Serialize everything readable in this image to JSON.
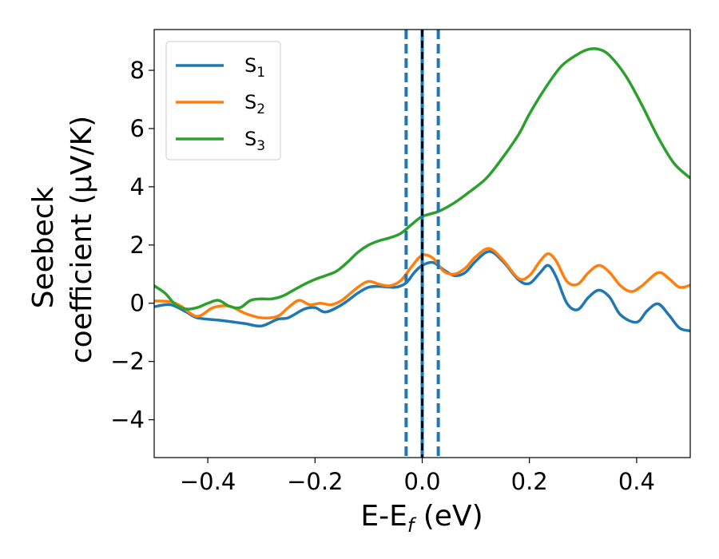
{
  "chart_data": {
    "type": "line",
    "xlabel_main": "E-E",
    "xlabel_sub": "f",
    "xlabel_unit": " (eV)",
    "ylabel_line1": "Seebeck",
    "ylabel_line2": "coefficient  (μV/K)",
    "xlim": [
      -0.5,
      0.5
    ],
    "ylim": [
      -5.3,
      9.4
    ],
    "xticks": [
      -0.4,
      -0.2,
      0.0,
      0.2,
      0.4
    ],
    "xtick_labels": [
      "−0.4",
      "−0.2",
      "0.0",
      "0.2",
      "0.4"
    ],
    "yticks": [
      -4,
      -2,
      0,
      2,
      4,
      6,
      8
    ],
    "ytick_labels": [
      "−4",
      "−2",
      "0",
      "2",
      "4",
      "6",
      "8"
    ],
    "grid": false,
    "legend_position": "top-left",
    "vlines": [
      {
        "x": -0.03,
        "style": "dashed",
        "color": "#1f77b4"
      },
      {
        "x": 0.0,
        "style": "solid",
        "color": "#1f77b4"
      },
      {
        "x": 0.0,
        "style": "dashed",
        "color": "#000000"
      },
      {
        "x": 0.03,
        "style": "dashed",
        "color": "#1f77b4"
      }
    ],
    "series": [
      {
        "name": "S",
        "sub": "1",
        "color": "#1f77b4",
        "points": [
          [
            -0.5,
            -0.12
          ],
          [
            -0.47,
            -0.05
          ],
          [
            -0.44,
            -0.3
          ],
          [
            -0.42,
            -0.5
          ],
          [
            -0.38,
            -0.58
          ],
          [
            -0.35,
            -0.65
          ],
          [
            -0.33,
            -0.7
          ],
          [
            -0.3,
            -0.78
          ],
          [
            -0.27,
            -0.55
          ],
          [
            -0.25,
            -0.5
          ],
          [
            -0.22,
            -0.2
          ],
          [
            -0.2,
            -0.15
          ],
          [
            -0.18,
            -0.3
          ],
          [
            -0.15,
            -0.05
          ],
          [
            -0.12,
            0.35
          ],
          [
            -0.1,
            0.55
          ],
          [
            -0.08,
            0.58
          ],
          [
            -0.05,
            0.55
          ],
          [
            -0.03,
            0.7
          ],
          [
            -0.015,
            1.05
          ],
          [
            0.0,
            1.3
          ],
          [
            0.02,
            1.4
          ],
          [
            0.04,
            1.15
          ],
          [
            0.06,
            0.95
          ],
          [
            0.08,
            1.05
          ],
          [
            0.1,
            1.45
          ],
          [
            0.125,
            1.78
          ],
          [
            0.15,
            1.45
          ],
          [
            0.18,
            0.8
          ],
          [
            0.2,
            0.68
          ],
          [
            0.22,
            1.05
          ],
          [
            0.235,
            1.3
          ],
          [
            0.25,
            0.9
          ],
          [
            0.27,
            0.0
          ],
          [
            0.29,
            -0.22
          ],
          [
            0.31,
            0.2
          ],
          [
            0.33,
            0.45
          ],
          [
            0.35,
            0.2
          ],
          [
            0.37,
            -0.4
          ],
          [
            0.4,
            -0.65
          ],
          [
            0.42,
            -0.25
          ],
          [
            0.44,
            -0.02
          ],
          [
            0.46,
            -0.4
          ],
          [
            0.48,
            -0.85
          ],
          [
            0.5,
            -0.95
          ]
        ]
      },
      {
        "name": "S",
        "sub": "2",
        "color": "#ff7f0e",
        "points": [
          [
            -0.5,
            0.08
          ],
          [
            -0.47,
            0.05
          ],
          [
            -0.45,
            -0.1
          ],
          [
            -0.42,
            -0.45
          ],
          [
            -0.39,
            -0.15
          ],
          [
            -0.36,
            -0.1
          ],
          [
            -0.33,
            -0.35
          ],
          [
            -0.3,
            -0.5
          ],
          [
            -0.27,
            -0.45
          ],
          [
            -0.25,
            -0.15
          ],
          [
            -0.23,
            0.1
          ],
          [
            -0.21,
            -0.05
          ],
          [
            -0.19,
            0.0
          ],
          [
            -0.17,
            -0.05
          ],
          [
            -0.15,
            0.1
          ],
          [
            -0.12,
            0.55
          ],
          [
            -0.1,
            0.75
          ],
          [
            -0.08,
            0.65
          ],
          [
            -0.06,
            0.6
          ],
          [
            -0.04,
            0.78
          ],
          [
            -0.02,
            1.25
          ],
          [
            0.0,
            1.65
          ],
          [
            0.02,
            1.55
          ],
          [
            0.04,
            1.1
          ],
          [
            0.06,
            1.0
          ],
          [
            0.08,
            1.2
          ],
          [
            0.1,
            1.6
          ],
          [
            0.125,
            1.88
          ],
          [
            0.15,
            1.5
          ],
          [
            0.18,
            0.85
          ],
          [
            0.2,
            0.95
          ],
          [
            0.22,
            1.45
          ],
          [
            0.235,
            1.7
          ],
          [
            0.25,
            1.45
          ],
          [
            0.27,
            0.75
          ],
          [
            0.29,
            0.65
          ],
          [
            0.31,
            1.05
          ],
          [
            0.33,
            1.3
          ],
          [
            0.35,
            1.05
          ],
          [
            0.37,
            0.6
          ],
          [
            0.39,
            0.4
          ],
          [
            0.41,
            0.6
          ],
          [
            0.44,
            1.05
          ],
          [
            0.46,
            0.85
          ],
          [
            0.48,
            0.55
          ],
          [
            0.5,
            0.62
          ]
        ]
      },
      {
        "name": "S",
        "sub": "3",
        "color": "#2ca02c",
        "points": [
          [
            -0.5,
            0.6
          ],
          [
            -0.48,
            0.35
          ],
          [
            -0.46,
            -0.05
          ],
          [
            -0.44,
            -0.2
          ],
          [
            -0.42,
            -0.15
          ],
          [
            -0.4,
            0.0
          ],
          [
            -0.38,
            0.1
          ],
          [
            -0.36,
            -0.1
          ],
          [
            -0.34,
            -0.15
          ],
          [
            -0.32,
            0.1
          ],
          [
            -0.3,
            0.15
          ],
          [
            -0.28,
            0.15
          ],
          [
            -0.26,
            0.25
          ],
          [
            -0.24,
            0.45
          ],
          [
            -0.22,
            0.65
          ],
          [
            -0.2,
            0.82
          ],
          [
            -0.18,
            0.95
          ],
          [
            -0.16,
            1.1
          ],
          [
            -0.14,
            1.4
          ],
          [
            -0.12,
            1.75
          ],
          [
            -0.1,
            2.0
          ],
          [
            -0.08,
            2.15
          ],
          [
            -0.06,
            2.25
          ],
          [
            -0.04,
            2.4
          ],
          [
            -0.02,
            2.7
          ],
          [
            0.0,
            2.98
          ],
          [
            0.03,
            3.15
          ],
          [
            0.06,
            3.45
          ],
          [
            0.09,
            3.85
          ],
          [
            0.12,
            4.3
          ],
          [
            0.15,
            5.0
          ],
          [
            0.18,
            5.8
          ],
          [
            0.2,
            6.5
          ],
          [
            0.23,
            7.4
          ],
          [
            0.26,
            8.15
          ],
          [
            0.29,
            8.55
          ],
          [
            0.31,
            8.72
          ],
          [
            0.33,
            8.72
          ],
          [
            0.35,
            8.5
          ],
          [
            0.38,
            7.8
          ],
          [
            0.41,
            6.8
          ],
          [
            0.44,
            5.7
          ],
          [
            0.47,
            4.8
          ],
          [
            0.5,
            4.3
          ]
        ]
      }
    ]
  }
}
